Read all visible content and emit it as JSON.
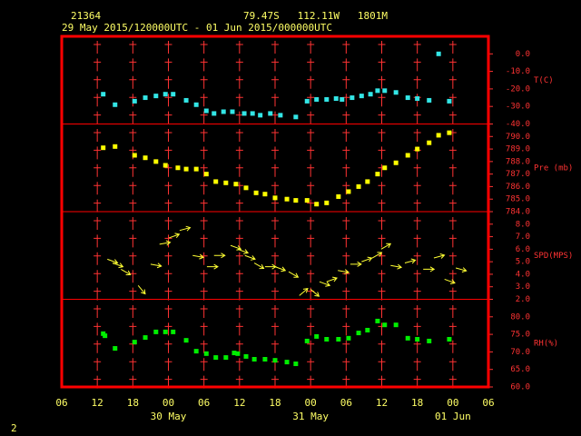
{
  "header": {
    "station": "21364",
    "location": "79.47S   112.11W   1801M",
    "period": "29 May 2015/120000UTC - 01 Jun 2015/000000UTC",
    "page": "2"
  },
  "x_axis": {
    "xlim": [
      6,
      78
    ],
    "xticks": [
      {
        "value": 6,
        "label": "06"
      },
      {
        "value": 12,
        "label": "12"
      },
      {
        "value": 18,
        "label": "18"
      },
      {
        "value": 24,
        "label": "00"
      },
      {
        "value": 30,
        "label": "06"
      },
      {
        "value": 36,
        "label": "12"
      },
      {
        "value": 42,
        "label": "18"
      },
      {
        "value": 48,
        "label": "00"
      },
      {
        "value": 54,
        "label": "06"
      },
      {
        "value": 60,
        "label": "12"
      },
      {
        "value": 66,
        "label": "18"
      },
      {
        "value": 72,
        "label": "00"
      },
      {
        "value": 78,
        "label": "06"
      }
    ],
    "dates": [
      {
        "value": 24,
        "label": "30 May"
      },
      {
        "value": 48,
        "label": "31 May"
      },
      {
        "value": 72,
        "label": "01 Jun"
      }
    ]
  },
  "chart_data": [
    {
      "type": "scatter",
      "label": "T(C)",
      "color": "#33e6e6",
      "ylim": [
        -40,
        10
      ],
      "yticks": [
        {
          "value": -40,
          "label": "-40.0"
        },
        {
          "value": -30,
          "label": "-30.0"
        },
        {
          "value": -20,
          "label": "-20.0"
        },
        {
          "value": -10,
          "label": "-10.0"
        },
        {
          "value": 0,
          "label": "0.0"
        }
      ],
      "x": [
        13.0,
        15.0,
        18.3,
        20.1,
        21.9,
        23.5,
        24.8,
        27.0,
        28.7,
        30.4,
        31.7,
        33.3,
        34.8,
        36.8,
        38.2,
        39.5,
        41.2,
        42.9,
        45.5,
        47.4,
        49.0,
        50.7,
        52.3,
        53.3,
        55.0,
        56.6,
        58.1,
        59.3,
        60.5,
        62.4,
        64.4,
        66.0,
        68.0,
        69.6,
        71.4
      ],
      "values": [
        -23,
        -29,
        -27,
        -25,
        -24,
        -23,
        -23,
        -26.5,
        -29,
        -32.5,
        -34,
        -33,
        -33,
        -34,
        -34,
        -35,
        -34,
        -35,
        -36,
        -27,
        -26,
        -26,
        -25.5,
        -26,
        -25,
        -24,
        -23,
        -21,
        -21,
        -22,
        -25,
        -25.5,
        -26.5,
        0,
        -27
      ]
    },
    {
      "type": "scatter",
      "label": "Pre (mb)",
      "color": "#ffff00",
      "ylim": [
        784,
        791
      ],
      "yticks": [
        {
          "value": 784,
          "label": "784.0"
        },
        {
          "value": 785,
          "label": "785.0"
        },
        {
          "value": 786,
          "label": "786.0"
        },
        {
          "value": 787,
          "label": "787.0"
        },
        {
          "value": 788,
          "label": "788.0"
        },
        {
          "value": 789,
          "label": "789.0"
        },
        {
          "value": 790,
          "label": "790.0"
        }
      ],
      "x": [
        13.0,
        15.0,
        18.3,
        20.1,
        21.9,
        23.5,
        25.6,
        27.0,
        28.7,
        30.4,
        32.0,
        33.7,
        35.4,
        37.1,
        38.8,
        40.3,
        42.0,
        44.0,
        45.5,
        47.4,
        49.0,
        50.7,
        52.7,
        54.4,
        56.1,
        57.6,
        59.3,
        60.5,
        62.4,
        64.4,
        66.0,
        68.0,
        69.6,
        71.4
      ],
      "values": [
        789.1,
        789.2,
        788.5,
        788.3,
        788.0,
        787.7,
        787.5,
        787.4,
        787.4,
        787.0,
        786.4,
        786.3,
        786.2,
        785.9,
        785.5,
        785.4,
        785.1,
        785.0,
        784.9,
        784.9,
        784.6,
        784.7,
        785.2,
        785.6,
        786.0,
        786.4,
        787.0,
        787.5,
        787.9,
        788.5,
        789.0,
        789.5,
        790.1,
        790.3
      ]
    },
    {
      "type": "wind",
      "label": "SPD(MPS)",
      "color": "#ffff33",
      "ylim": [
        2,
        9
      ],
      "yticks": [
        {
          "value": 2,
          "label": "2.0"
        },
        {
          "value": 3,
          "label": "3.0"
        },
        {
          "value": 4,
          "label": "4.0"
        },
        {
          "value": 5,
          "label": "5.0"
        },
        {
          "value": 6,
          "label": "6.0"
        },
        {
          "value": 7,
          "label": "7.0"
        },
        {
          "value": 8,
          "label": "8.0"
        }
      ],
      "x": [
        13.7,
        14.6,
        16.0,
        18.9,
        21.0,
        22.5,
        24.1,
        25.9,
        28.1,
        30.5,
        31.7,
        34.5,
        35.7,
        36.9,
        38.5,
        40.3,
        42.0,
        44.3,
        46.1,
        48.0,
        49.5,
        50.7,
        52.6,
        54.7,
        56.6,
        58.4,
        59.9,
        61.5,
        63.9,
        67.0,
        68.8,
        70.6,
        72.5
      ],
      "values": [
        5.2,
        4.9,
        4.4,
        3.1,
        4.8,
        6.4,
        6.9,
        7.5,
        5.5,
        4.6,
        5.5,
        6.3,
        6.0,
        5.5,
        4.9,
        4.6,
        4.6,
        4.2,
        2.3,
        2.8,
        3.4,
        3.4,
        4.3,
        4.8,
        5.0,
        5.3,
        6.0,
        4.7,
        4.9,
        4.4,
        5.3,
        3.6,
        4.5
      ],
      "directions": [
        20,
        20,
        30,
        50,
        10,
        -10,
        -20,
        -15,
        10,
        0,
        0,
        20,
        20,
        20,
        30,
        0,
        20,
        30,
        -40,
        40,
        20,
        -20,
        10,
        0,
        -20,
        -30,
        -30,
        10,
        -15,
        0,
        -15,
        20,
        15
      ]
    },
    {
      "type": "scatter",
      "label": "RH(%)",
      "color": "#00ee00",
      "ylim": [
        60,
        85
      ],
      "yticks": [
        {
          "value": 60,
          "label": "60.0"
        },
        {
          "value": 65,
          "label": "65.0"
        },
        {
          "value": 70,
          "label": "70.0"
        },
        {
          "value": 75,
          "label": "75.0"
        },
        {
          "value": 80,
          "label": "80.0"
        }
      ],
      "x": [
        13.0,
        13.3,
        15.0,
        18.3,
        20.1,
        21.9,
        23.5,
        24.8,
        27.0,
        28.7,
        30.4,
        32.0,
        33.7,
        35.1,
        35.7,
        37.1,
        38.5,
        40.3,
        42.0,
        44.0,
        45.5,
        47.4,
        49.0,
        50.7,
        52.7,
        54.4,
        56.1,
        57.6,
        59.3,
        60.5,
        62.4,
        64.4,
        66.0,
        68.0,
        71.4
      ],
      "values": [
        75.2,
        74.6,
        71.0,
        72.8,
        74.1,
        75.7,
        75.7,
        75.7,
        73.3,
        70.2,
        69.5,
        68.4,
        68.4,
        69.7,
        69.5,
        68.7,
        67.9,
        67.9,
        67.6,
        67.1,
        66.6,
        73.1,
        74.4,
        73.6,
        73.6,
        73.9,
        75.4,
        76.2,
        78.8,
        77.7,
        77.7,
        73.9,
        73.6,
        73.1,
        73.6
      ]
    }
  ]
}
